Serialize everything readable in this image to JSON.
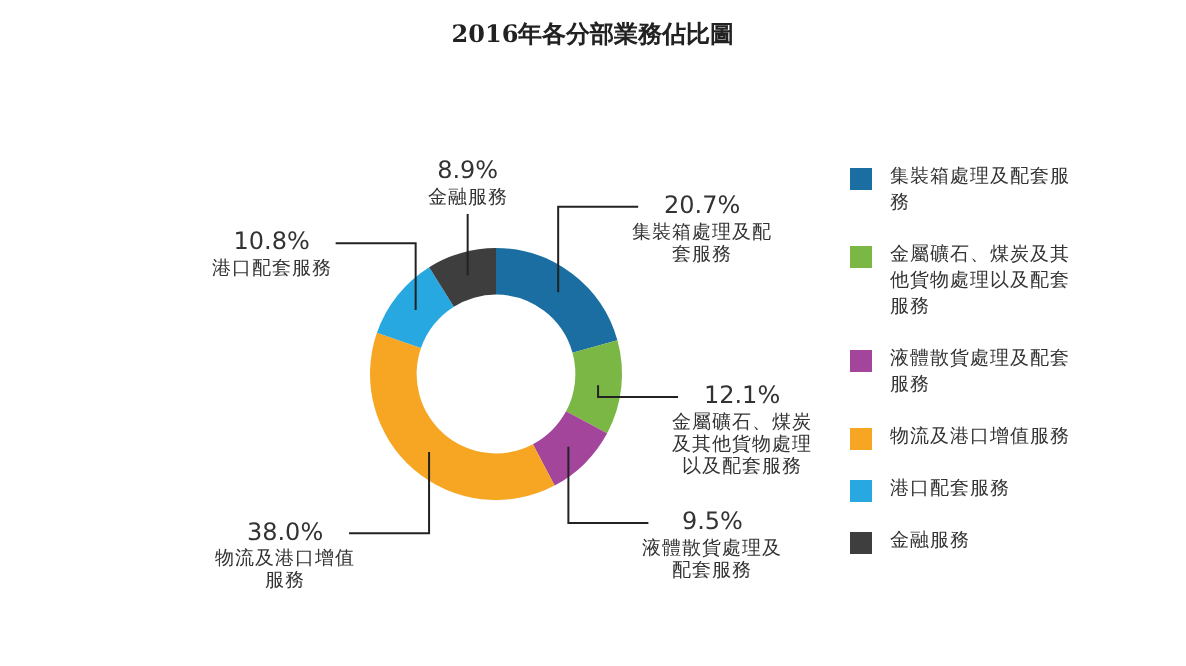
{
  "chart_data": {
    "type": "donut",
    "title": "2016年各分部業務佔比圖",
    "categories": [
      "集裝箱處理及配套服務",
      "金屬礦石、煤炭及其他貨物處理以及配套服務",
      "液體散貨處理及配套服務",
      "物流及港口增值服務",
      "港口配套服務",
      "金融服務"
    ],
    "values": [
      20.7,
      12.1,
      9.5,
      38.0,
      10.8,
      8.9
    ],
    "value_labels": [
      "20.7%",
      "12.1%",
      "9.5%",
      "38.0%",
      "10.8%",
      "8.9%"
    ],
    "colors": [
      "#1b6ea1",
      "#7bb744",
      "#a4459c",
      "#f6a623",
      "#28a8e0",
      "#3e3e3e"
    ],
    "legend": "right"
  }
}
